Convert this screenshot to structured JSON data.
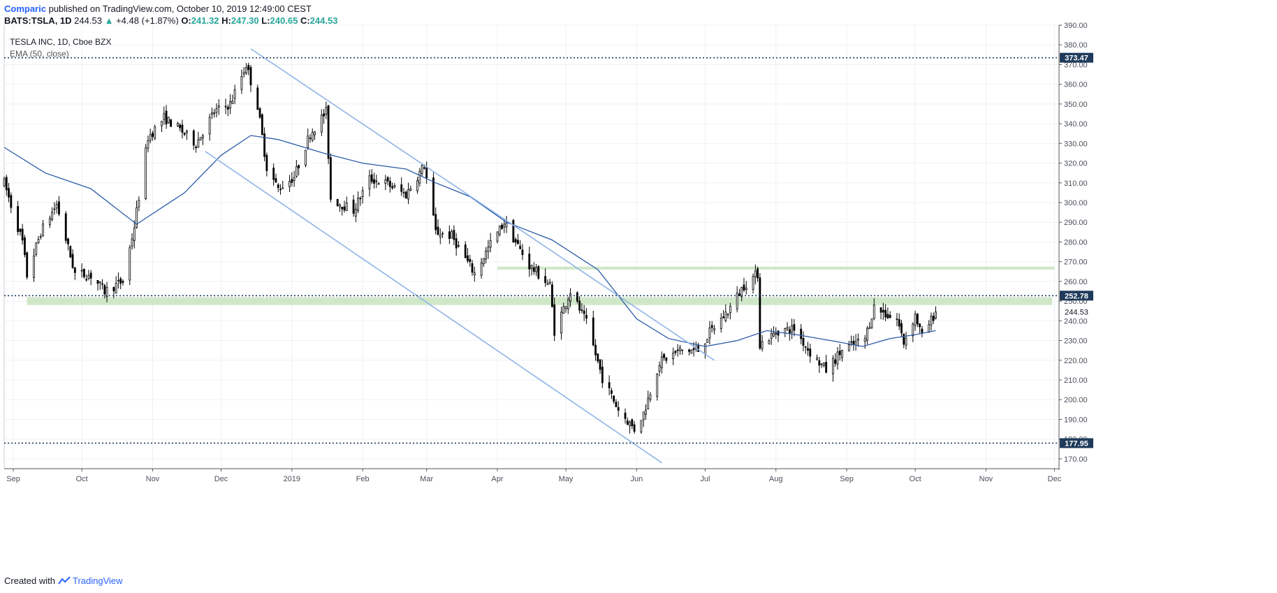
{
  "header": {
    "author": "Comparic",
    "published_text": "published on TradingView.com, October 10, 2019 12:49:00 CEST",
    "symbol": "BATS:TSLA, 1D",
    "last": "244.53",
    "change_arrow": "▲",
    "change": "+4.48 (+1.87%)",
    "open_label": "O:",
    "open": "241.32",
    "high_label": "H:",
    "high": "247.30",
    "low_label": "L:",
    "low": "240.65",
    "close_label": "C:",
    "close": "244.53"
  },
  "legend": {
    "title": "TESLA INC, 1D, Cboe BZX",
    "indicator": "EMA (50, close)"
  },
  "footer": {
    "created_with": "Created with",
    "brand": "TradingView"
  },
  "colors": {
    "candle_up_fill": "#ffffff",
    "candle_down_fill": "#000000",
    "candle_border": "#000000",
    "ema": "#2a5aa6",
    "channel": "#8fb4e6",
    "zone": "#c9e3c0",
    "hline": "#1f3a5a",
    "grid": "#eef1f5"
  },
  "chart_data": {
    "type": "candlestick",
    "title": "TESLA INC, 1D, Cboe BZX",
    "y_axis": {
      "min": 165,
      "max": 390,
      "ticks": [
        170,
        180,
        190,
        200,
        210,
        220,
        230,
        240,
        250,
        260,
        270,
        280,
        290,
        300,
        310,
        320,
        330,
        340,
        350,
        360,
        370,
        380,
        390
      ],
      "tick_labels": [
        "170.00",
        "180.00",
        "190.00",
        "200.00",
        "210.00",
        "220.00",
        "230.00",
        "240.00",
        "250.00",
        "260.00",
        "270.00",
        "280.00",
        "290.00",
        "300.00",
        "310.00",
        "320.00",
        "330.00",
        "340.00",
        "350.00",
        "360.00",
        "370.00",
        "380.00",
        "390.00"
      ]
    },
    "x_axis": {
      "start": "2018-08-28",
      "end": "2019-12-03",
      "ticks": [
        {
          "date": "2018-09-01",
          "label": "Sep"
        },
        {
          "date": "2018-10-01",
          "label": "Oct"
        },
        {
          "date": "2018-11-01",
          "label": "Nov"
        },
        {
          "date": "2018-12-01",
          "label": "Dec"
        },
        {
          "date": "2019-01-01",
          "label": "2019"
        },
        {
          "date": "2019-02-01",
          "label": "Feb"
        },
        {
          "date": "2019-03-01",
          "label": "Mar"
        },
        {
          "date": "2019-04-01",
          "label": "Apr"
        },
        {
          "date": "2019-05-01",
          "label": "May"
        },
        {
          "date": "2019-06-01",
          "label": "Jun"
        },
        {
          "date": "2019-07-01",
          "label": "Jul"
        },
        {
          "date": "2019-08-01",
          "label": "Aug"
        },
        {
          "date": "2019-09-01",
          "label": "Sep"
        },
        {
          "date": "2019-10-01",
          "label": "Oct"
        },
        {
          "date": "2019-11-01",
          "label": "Nov"
        },
        {
          "date": "2019-12-01",
          "label": "Dec"
        }
      ]
    },
    "price_anchors": {
      "comment": "",
      "points": [
        [
          "2018-08-28",
          310
        ],
        [
          "2018-09-05",
          280
        ],
        [
          "2018-09-07",
          263
        ],
        [
          "2018-09-13",
          285
        ],
        [
          "2018-09-20",
          299
        ],
        [
          "2018-09-28",
          264
        ],
        [
          "2018-10-05",
          263
        ],
        [
          "2018-10-11",
          255
        ],
        [
          "2018-10-19",
          260
        ],
        [
          "2018-10-24",
          288
        ],
        [
          "2018-10-30",
          333
        ],
        [
          "2018-11-06",
          343
        ],
        [
          "2018-11-12",
          338
        ],
        [
          "2018-11-20",
          330
        ],
        [
          "2018-11-28",
          346
        ],
        [
          "2018-12-05",
          350
        ],
        [
          "2018-12-12",
          370
        ],
        [
          "2018-12-17",
          349
        ],
        [
          "2018-12-21",
          318
        ],
        [
          "2018-12-26",
          307
        ],
        [
          "2019-01-02",
          313
        ],
        [
          "2019-01-09",
          335
        ],
        [
          "2019-01-16",
          346
        ],
        [
          "2019-01-18",
          302
        ],
        [
          "2019-01-28",
          296
        ],
        [
          "2019-02-04",
          312
        ],
        [
          "2019-02-11",
          310
        ],
        [
          "2019-02-20",
          304
        ],
        [
          "2019-02-28",
          319
        ],
        [
          "2019-03-05",
          285
        ],
        [
          "2019-03-12",
          283
        ],
        [
          "2019-03-22",
          264
        ],
        [
          "2019-03-29",
          279
        ],
        [
          "2019-04-04",
          290
        ],
        [
          "2019-04-15",
          268
        ],
        [
          "2019-04-24",
          258
        ],
        [
          "2019-04-26",
          235
        ],
        [
          "2019-05-03",
          255
        ],
        [
          "2019-05-10",
          239
        ],
        [
          "2019-05-17",
          211
        ],
        [
          "2019-05-24",
          195
        ],
        [
          "2019-05-31",
          185
        ],
        [
          "2019-06-04",
          193
        ],
        [
          "2019-06-11",
          219
        ],
        [
          "2019-06-20",
          225
        ],
        [
          "2019-06-28",
          225
        ],
        [
          "2019-07-03",
          234
        ],
        [
          "2019-07-11",
          245
        ],
        [
          "2019-07-18",
          258
        ],
        [
          "2019-07-24",
          264
        ],
        [
          "2019-07-25",
          228
        ],
        [
          "2019-08-02",
          235
        ],
        [
          "2019-08-09",
          236
        ],
        [
          "2019-08-16",
          224
        ],
        [
          "2019-08-23",
          215
        ],
        [
          "2019-08-30",
          225
        ],
        [
          "2019-09-09",
          231
        ],
        [
          "2019-09-13",
          247
        ],
        [
          "2019-09-20",
          242
        ],
        [
          "2019-09-23",
          241
        ],
        [
          "2019-09-26",
          229
        ],
        [
          "2019-10-01",
          243
        ],
        [
          "2019-10-04",
          232
        ],
        [
          "2019-10-10",
          244.53
        ]
      ]
    },
    "ema50": [
      [
        "2018-08-28",
        328
      ],
      [
        "2018-09-15",
        315
      ],
      [
        "2018-10-05",
        307
      ],
      [
        "2018-10-25",
        289
      ],
      [
        "2018-11-15",
        305
      ],
      [
        "2018-12-01",
        324
      ],
      [
        "2018-12-14",
        334
      ],
      [
        "2018-12-26",
        332
      ],
      [
        "2019-01-15",
        325
      ],
      [
        "2019-02-01",
        320
      ],
      [
        "2019-02-20",
        317
      ],
      [
        "2019-03-05",
        310
      ],
      [
        "2019-03-20",
        303
      ],
      [
        "2019-04-05",
        290
      ],
      [
        "2019-04-25",
        281
      ],
      [
        "2019-05-15",
        266
      ],
      [
        "2019-06-01",
        241
      ],
      [
        "2019-06-15",
        231
      ],
      [
        "2019-07-01",
        227
      ],
      [
        "2019-07-15",
        230
      ],
      [
        "2019-07-28",
        235
      ],
      [
        "2019-08-10",
        233
      ],
      [
        "2019-08-25",
        230
      ],
      [
        "2019-09-08",
        227
      ],
      [
        "2019-09-20",
        231
      ],
      [
        "2019-10-01",
        233
      ],
      [
        "2019-10-10",
        235
      ]
    ],
    "horizontal_levels": [
      {
        "value": 373.47,
        "label": "373.47",
        "style": "dotted"
      },
      {
        "value": 252.78,
        "label": "252.78",
        "style": "dotted"
      },
      {
        "value": 177.95,
        "label": "177.95",
        "style": "dotted"
      }
    ],
    "last_price_label": "244.53",
    "zones": [
      {
        "from": "2018-09-07",
        "to": "2019-11-30",
        "low": 248,
        "high": 252
      },
      {
        "from": "2019-04-01",
        "to": "2019-12-01",
        "low": 266,
        "high": 267.5
      }
    ],
    "trend_lines": [
      {
        "from": [
          "2018-12-14",
          378
        ],
        "to": [
          "2019-07-05",
          220
        ]
      },
      {
        "from": [
          "2018-11-24",
          326
        ],
        "to": [
          "2019-06-12",
          168
        ]
      }
    ]
  }
}
